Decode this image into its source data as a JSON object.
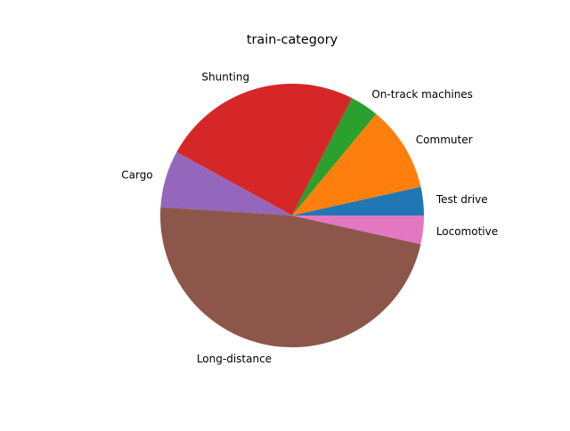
{
  "chart_data": {
    "type": "pie",
    "title": "train-category",
    "start_angle_deg": 0,
    "direction": "counterclockwise",
    "slices": [
      {
        "label": "Test drive",
        "value": 3.5,
        "color": "#1f77b4"
      },
      {
        "label": "Commuter",
        "value": 10.5,
        "color": "#ff7f0e"
      },
      {
        "label": "On-track machines",
        "value": 3.5,
        "color": "#2ca02c"
      },
      {
        "label": "Shunting",
        "value": 24.5,
        "color": "#d62728"
      },
      {
        "label": "Cargo",
        "value": 7.0,
        "color": "#9467bd"
      },
      {
        "label": "Long-distance",
        "value": 47.5,
        "color": "#8c564b"
      },
      {
        "label": "Locomotive",
        "value": 3.5,
        "color": "#e377c2"
      }
    ]
  }
}
